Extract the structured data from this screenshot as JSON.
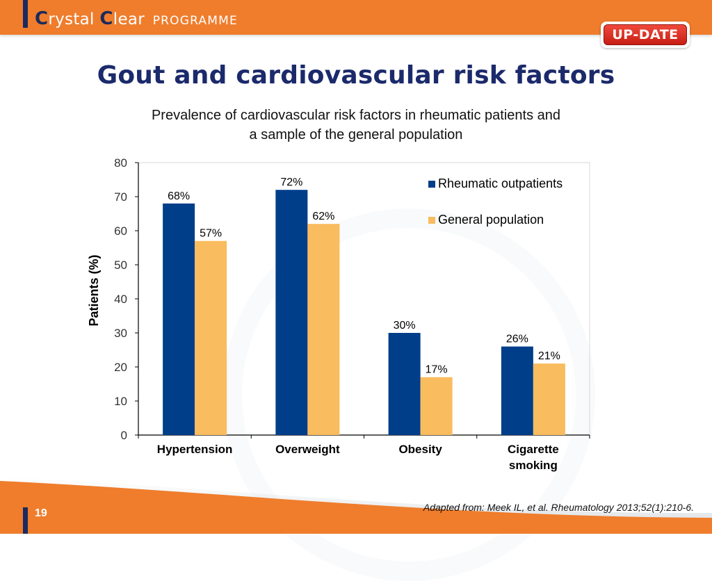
{
  "header": {
    "brand_first": "rystal",
    "brand_c1": "C",
    "brand_c2": "C",
    "brand_second": "lear",
    "brand_programme": "PROGRAMME",
    "badge": "UP-DATE"
  },
  "slide": {
    "title": "Gout and cardiovascular risk factors",
    "subtitle_line1": "Prevalence of cardiovascular risk factors in rheumatic patients and",
    "subtitle_line2": "a sample of the general population",
    "page_number": "19",
    "citation": "Adapted from: Meek IL, et al. Rheumatology 2013;52(1):210-6."
  },
  "colors": {
    "orange": "#ef7d2c",
    "navy": "#1b2a5c",
    "series1": "#003e8a",
    "series2": "#f9bc5e"
  },
  "chart_data": {
    "type": "bar",
    "title": "",
    "categories": [
      "Hypertension",
      "Overweight",
      "Obesity",
      "Cigarette smoking"
    ],
    "category_lines": [
      [
        "Hypertension"
      ],
      [
        "Overweight"
      ],
      [
        "Obesity"
      ],
      [
        "Cigarette",
        "smoking"
      ]
    ],
    "series": [
      {
        "name": "Rheumatic outpatients",
        "values": [
          68,
          72,
          30,
          26
        ],
        "labels": [
          "68%",
          "72%",
          "30%",
          "26%"
        ],
        "color": "#003e8a"
      },
      {
        "name": "General population",
        "values": [
          57,
          62,
          17,
          21
        ],
        "labels": [
          "57%",
          "62%",
          "17%",
          "21%"
        ],
        "color": "#f9bc5e"
      }
    ],
    "xlabel": "",
    "ylabel": "Patients (%)",
    "ylim": [
      0,
      80
    ],
    "yticks": [
      0,
      10,
      20,
      30,
      40,
      50,
      60,
      70,
      80
    ],
    "grid": false,
    "legend": "top-right"
  }
}
